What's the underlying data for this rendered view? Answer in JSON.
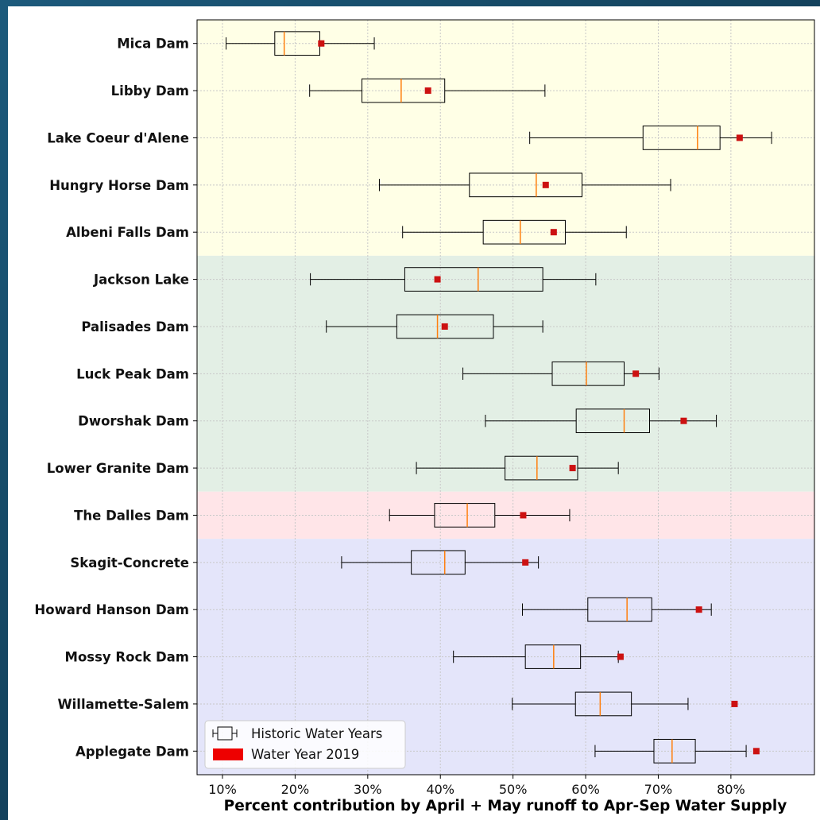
{
  "chart_data": {
    "type": "boxplot",
    "orientation": "horizontal",
    "xlabel": "Percent contribution by April + May runoff to Apr-Sep Water Supply",
    "ylabel": "",
    "xlim": [
      6.5,
      91.5
    ],
    "xticks": [
      10,
      20,
      30,
      40,
      50,
      60,
      70,
      80
    ],
    "xtick_labels": [
      "10%",
      "20%",
      "30%",
      "40%",
      "50%",
      "60%",
      "70%",
      "80%"
    ],
    "grid": true,
    "legend": {
      "position": "lower-left",
      "entries": [
        {
          "label": "Historic Water Years",
          "marker": "box"
        },
        {
          "label": "Water Year 2019",
          "marker": "red-patch"
        }
      ]
    },
    "colors": {
      "box_edge": "#000000",
      "median": "#ff7f0e",
      "wy2019": "#cc1111",
      "legend_patch": "#ee0000"
    },
    "regions": [
      {
        "start": 0,
        "end": 4,
        "color": "#ffffe6"
      },
      {
        "start": 5,
        "end": 9,
        "color": "#e3efe5"
      },
      {
        "start": 10,
        "end": 10,
        "color": "#ffe5e8"
      },
      {
        "start": 11,
        "end": 15,
        "color": "#e4e5fa"
      }
    ],
    "categories": [
      "Mica Dam",
      "Libby Dam",
      "Lake Coeur d'Alene",
      "Hungry Horse Dam",
      "Albeni Falls Dam",
      "Jackson Lake",
      "Palisades Dam",
      "Luck Peak Dam",
      "Dworshak Dam",
      "Lower Granite Dam",
      "The Dalles Dam",
      "Skagit-Concrete",
      "Howard Hanson Dam",
      "Mossy Rock Dam",
      "Willamette-Salem",
      "Applegate Dam"
    ],
    "series": [
      {
        "name": "Historic Water Years",
        "boxes": [
          {
            "min": 10.5,
            "q1": 17.2,
            "median": 18.5,
            "q3": 23.4,
            "max": 30.9
          },
          {
            "min": 22.0,
            "q1": 29.2,
            "median": 34.6,
            "q3": 40.6,
            "max": 54.4
          },
          {
            "min": 52.3,
            "q1": 67.9,
            "median": 75.4,
            "q3": 78.5,
            "max": 85.6
          },
          {
            "min": 31.6,
            "q1": 44.0,
            "median": 53.2,
            "q3": 59.5,
            "max": 71.7
          },
          {
            "min": 34.8,
            "q1": 45.9,
            "median": 51.0,
            "q3": 57.2,
            "max": 65.6
          },
          {
            "min": 22.1,
            "q1": 35.1,
            "median": 45.2,
            "q3": 54.1,
            "max": 61.4
          },
          {
            "min": 24.3,
            "q1": 34.0,
            "median": 39.6,
            "q3": 47.3,
            "max": 54.1
          },
          {
            "min": 43.1,
            "q1": 55.4,
            "median": 60.1,
            "q3": 65.3,
            "max": 70.1
          },
          {
            "min": 46.2,
            "q1": 58.7,
            "median": 65.3,
            "q3": 68.8,
            "max": 78.0
          },
          {
            "min": 36.7,
            "q1": 48.9,
            "median": 53.3,
            "q3": 58.9,
            "max": 64.5
          },
          {
            "min": 33.0,
            "q1": 39.2,
            "median": 43.7,
            "q3": 47.5,
            "max": 57.8
          },
          {
            "min": 26.4,
            "q1": 36.0,
            "median": 40.6,
            "q3": 43.4,
            "max": 53.5
          },
          {
            "min": 51.3,
            "q1": 60.3,
            "median": 65.7,
            "q3": 69.1,
            "max": 77.3
          },
          {
            "min": 41.8,
            "q1": 51.7,
            "median": 55.6,
            "q3": 59.3,
            "max": 64.5
          },
          {
            "min": 49.9,
            "q1": 58.6,
            "median": 62.0,
            "q3": 66.3,
            "max": 74.1
          },
          {
            "min": 61.3,
            "q1": 69.4,
            "median": 71.9,
            "q3": 75.1,
            "max": 82.1
          }
        ]
      },
      {
        "name": "Water Year 2019",
        "values": [
          23.6,
          38.3,
          81.2,
          54.5,
          55.6,
          39.6,
          40.6,
          66.9,
          73.5,
          58.2,
          51.4,
          51.7,
          75.6,
          64.8,
          80.5,
          83.5
        ]
      }
    ]
  }
}
